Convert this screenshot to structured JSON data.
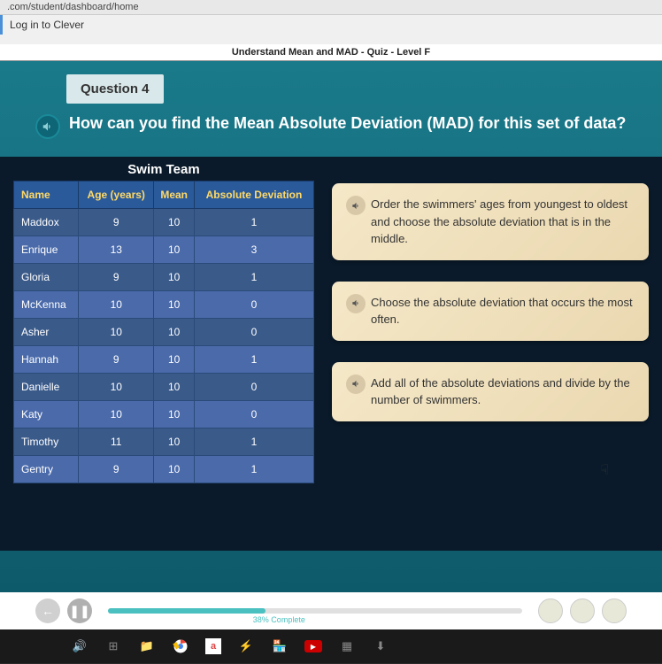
{
  "browser": {
    "url": ".com/student/dashboard/home",
    "tab_title": "Log in to Clever"
  },
  "app": {
    "header_title": "Understand Mean and MAD - Quiz - Level F"
  },
  "question": {
    "label": "Question 4",
    "text": "How can you find the Mean Absolute Deviation (MAD) for this set of data?"
  },
  "table": {
    "title": "Swim Team",
    "columns": [
      "Name",
      "Age (years)",
      "Mean",
      "Absolute Deviation"
    ],
    "rows": [
      [
        "Maddox",
        "9",
        "10",
        "1"
      ],
      [
        "Enrique",
        "13",
        "10",
        "3"
      ],
      [
        "Gloria",
        "9",
        "10",
        "1"
      ],
      [
        "McKenna",
        "10",
        "10",
        "0"
      ],
      [
        "Asher",
        "10",
        "10",
        "0"
      ],
      [
        "Hannah",
        "9",
        "10",
        "1"
      ],
      [
        "Danielle",
        "10",
        "10",
        "0"
      ],
      [
        "Katy",
        "10",
        "10",
        "0"
      ],
      [
        "Timothy",
        "11",
        "10",
        "1"
      ],
      [
        "Gentry",
        "9",
        "10",
        "1"
      ]
    ]
  },
  "answers": [
    "Order the swimmers' ages from youngest to oldest and choose the absolute deviation that is in the middle.",
    "Choose the absolute deviation that occurs the most often.",
    "Add all of the absolute deviations and divide by the number of swimmers."
  ],
  "progress": {
    "percent": 38,
    "label": "38% Complete"
  },
  "colors": {
    "header_teal": "#1a7a8a",
    "dark_bg": "#0a1a2a",
    "table_header_bg": "#2a5a9a",
    "table_header_text": "#ffd966",
    "row_odd": "#3a5a8a",
    "row_even": "#4a6aaa",
    "answer_bg": "#f5e8c8",
    "progress_fill": "#4ac0c0"
  }
}
